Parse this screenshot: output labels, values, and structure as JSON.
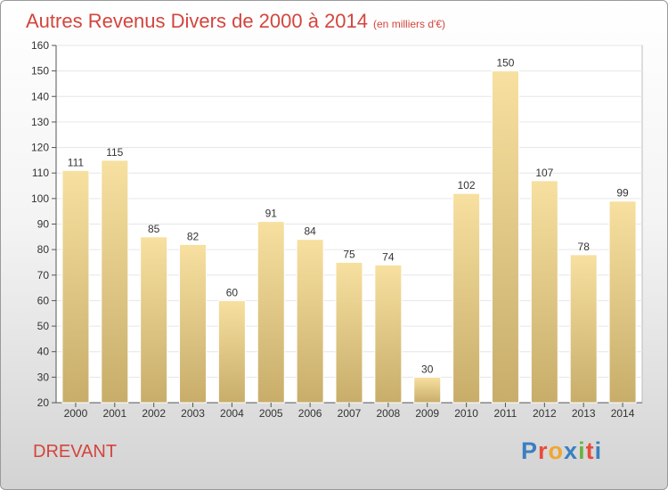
{
  "header": {
    "title": "Autres Revenus Divers de 2000 à 2014",
    "subtitle": "(en milliers d'€)"
  },
  "footer": {
    "place": "DREVANT",
    "logo": "Proxiti"
  },
  "colors": {
    "title": "#d3453d",
    "bar_light": "#f7e0a0",
    "bar_dark": "#c8ad6a",
    "logo_letters": [
      "#3a7fc1",
      "#e84c3d",
      "#f0a630",
      "#3a7fc1",
      "#6cb33f",
      "#e84c3d",
      "#3a7fc1"
    ]
  },
  "chart_data": {
    "type": "bar",
    "categories": [
      "2000",
      "2001",
      "2002",
      "2003",
      "2004",
      "2005",
      "2006",
      "2007",
      "2008",
      "2009",
      "2010",
      "2011",
      "2012",
      "2013",
      "2014"
    ],
    "values": [
      111,
      115,
      85,
      82,
      60,
      91,
      84,
      75,
      74,
      30,
      102,
      150,
      107,
      78,
      99
    ],
    "ylim": [
      20,
      160
    ],
    "yticks": [
      20,
      30,
      40,
      50,
      60,
      70,
      80,
      90,
      100,
      110,
      120,
      130,
      140,
      150,
      160
    ],
    "grid": true,
    "title": "Autres Revenus Divers de 2000 à 2014",
    "xlabel": "",
    "ylabel": ""
  }
}
